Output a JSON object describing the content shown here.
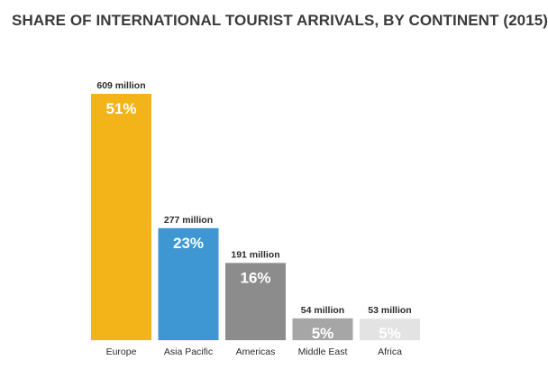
{
  "chart_data": {
    "type": "bar",
    "title": "SHARE OF INTERNATIONAL TOURIST ARRIVALS, BY CONTINENT (2015)",
    "xlabel": "",
    "ylabel": "",
    "ylim": [
      0,
      609
    ],
    "grid": false,
    "legend": "none",
    "categories": [
      "Europe",
      "Asia Pacific",
      "Americas",
      "Middle East",
      "Africa"
    ],
    "values": [
      609,
      277,
      191,
      54,
      53
    ],
    "value_labels": [
      "609 million",
      "277 million",
      "191 million",
      "54 million",
      "53 million"
    ],
    "share_labels": [
      "51%",
      "23%",
      "16%",
      "5%",
      "5%"
    ],
    "colors": [
      "#f2b418",
      "#3e97d3",
      "#8c8c8c",
      "#a6a6a6",
      "#e3e3e3"
    ]
  }
}
